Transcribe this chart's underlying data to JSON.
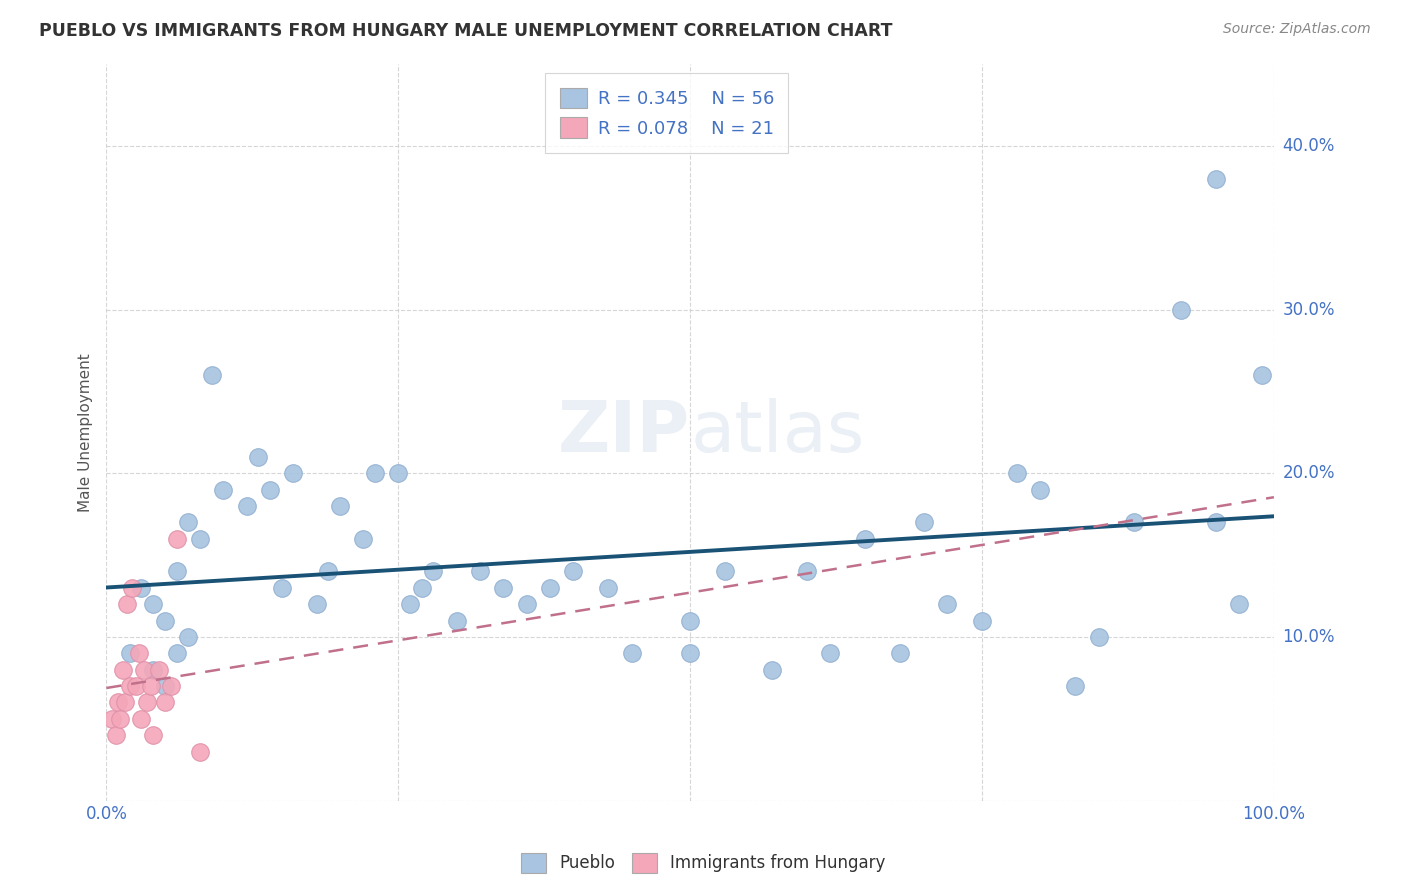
{
  "title": "PUEBLO VS IMMIGRANTS FROM HUNGARY MALE UNEMPLOYMENT CORRELATION CHART",
  "source": "Source: ZipAtlas.com",
  "ylabel": "Male Unemployment",
  "watermark": "ZIPatlas",
  "legend_bottom": [
    "Pueblo",
    "Immigrants from Hungary"
  ],
  "pueblo_R": 0.345,
  "pueblo_N": 56,
  "hungary_R": 0.078,
  "hungary_N": 21,
  "xlim": [
    0.0,
    1.0
  ],
  "ylim": [
    0.0,
    0.45
  ],
  "xticks": [
    0.0,
    0.25,
    0.5,
    0.75,
    1.0
  ],
  "yticks": [
    0.0,
    0.1,
    0.2,
    0.3,
    0.4
  ],
  "ytick_labels": [
    "",
    "10.0%",
    "20.0%",
    "30.0%",
    "40.0%"
  ],
  "xtick_labels": [
    "0.0%",
    "",
    "",
    "",
    "100.0%"
  ],
  "pueblo_color": "#a8c4e0",
  "hungary_color": "#f4a7b9",
  "trend_blue": "#1a5276",
  "trend_pink": "#c0708a",
  "background_color": "#ffffff",
  "pueblo_x": [
    0.02,
    0.03,
    0.04,
    0.04,
    0.05,
    0.05,
    0.06,
    0.06,
    0.07,
    0.07,
    0.08,
    0.09,
    0.1,
    0.12,
    0.13,
    0.14,
    0.15,
    0.16,
    0.18,
    0.19,
    0.2,
    0.22,
    0.23,
    0.25,
    0.26,
    0.27,
    0.28,
    0.3,
    0.32,
    0.34,
    0.36,
    0.38,
    0.4,
    0.43,
    0.45,
    0.5,
    0.5,
    0.53,
    0.57,
    0.6,
    0.62,
    0.65,
    0.68,
    0.7,
    0.72,
    0.75,
    0.78,
    0.8,
    0.83,
    0.85,
    0.88,
    0.92,
    0.95,
    0.95,
    0.97,
    0.99
  ],
  "pueblo_y": [
    0.09,
    0.13,
    0.12,
    0.08,
    0.11,
    0.07,
    0.09,
    0.14,
    0.1,
    0.17,
    0.16,
    0.26,
    0.19,
    0.18,
    0.21,
    0.19,
    0.13,
    0.2,
    0.12,
    0.14,
    0.18,
    0.16,
    0.2,
    0.2,
    0.12,
    0.13,
    0.14,
    0.11,
    0.14,
    0.13,
    0.12,
    0.13,
    0.14,
    0.13,
    0.09,
    0.11,
    0.09,
    0.14,
    0.08,
    0.14,
    0.09,
    0.16,
    0.09,
    0.17,
    0.12,
    0.11,
    0.2,
    0.19,
    0.07,
    0.1,
    0.17,
    0.3,
    0.38,
    0.17,
    0.12,
    0.26
  ],
  "hungary_x": [
    0.005,
    0.008,
    0.01,
    0.012,
    0.014,
    0.016,
    0.018,
    0.02,
    0.022,
    0.025,
    0.028,
    0.03,
    0.032,
    0.035,
    0.038,
    0.04,
    0.045,
    0.05,
    0.055,
    0.06,
    0.08
  ],
  "hungary_y": [
    0.05,
    0.04,
    0.06,
    0.05,
    0.08,
    0.06,
    0.12,
    0.07,
    0.13,
    0.07,
    0.09,
    0.05,
    0.08,
    0.06,
    0.07,
    0.04,
    0.08,
    0.06,
    0.07,
    0.16,
    0.03
  ]
}
